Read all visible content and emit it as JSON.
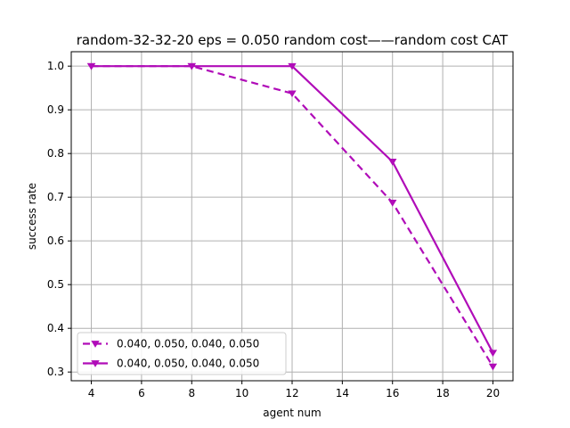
{
  "chart_data": {
    "type": "line",
    "title": "random-32-32-20    eps = 0.050    random cost——random cost    CAT",
    "xlabel": "agent num",
    "ylabel": "success rate",
    "xlim": [
      3.2,
      20.8
    ],
    "ylim": [
      0.28,
      1.033
    ],
    "xticks": [
      4,
      6,
      8,
      10,
      12,
      14,
      16,
      18,
      20
    ],
    "yticks": [
      0.3,
      0.4,
      0.5,
      0.6,
      0.7,
      0.8,
      0.9,
      1.0
    ],
    "grid": true,
    "legend_position": "lower-left",
    "x": [
      4,
      8,
      12,
      16,
      20
    ],
    "series": [
      {
        "name": "0.040, 0.050, 0.040, 0.050",
        "values": [
          1.0,
          1.0,
          0.9375,
          0.6875,
          0.3125
        ],
        "color": "#b00cb8",
        "dash": true,
        "marker": "triangle-down"
      },
      {
        "name": "0.040, 0.050, 0.040, 0.050",
        "values": [
          1.0,
          1.0,
          1.0,
          0.78125,
          0.34375
        ],
        "color": "#b00cb8",
        "dash": false,
        "marker": "triangle-down"
      }
    ]
  }
}
